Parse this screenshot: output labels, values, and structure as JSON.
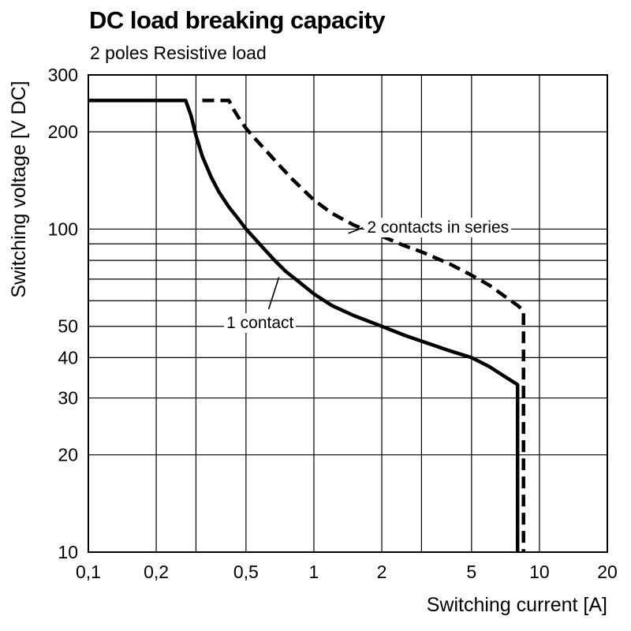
{
  "chart_data": {
    "type": "line",
    "title": "DC load breaking capacity",
    "subtitle": "2 poles Resistive load",
    "xlabel": "Switching current [A]",
    "ylabel": "Switching voltage [V DC]",
    "x_scale": "log",
    "y_scale": "log",
    "xlim": [
      0.1,
      20
    ],
    "ylim": [
      10,
      300
    ],
    "grid": true,
    "line_color": "#000000",
    "x_ticks": [
      {
        "v": 0.1,
        "label": "0,1"
      },
      {
        "v": 0.2,
        "label": "0,2"
      },
      {
        "v": 0.5,
        "label": "0,5"
      },
      {
        "v": 1,
        "label": "1"
      },
      {
        "v": 2,
        "label": "2"
      },
      {
        "v": 5,
        "label": "5"
      },
      {
        "v": 10,
        "label": "10"
      },
      {
        "v": 20,
        "label": "20"
      }
    ],
    "y_ticks": [
      {
        "v": 10,
        "label": "10"
      },
      {
        "v": 20,
        "label": "20"
      },
      {
        "v": 30,
        "label": "30"
      },
      {
        "v": 40,
        "label": "40"
      },
      {
        "v": 50,
        "label": "50"
      },
      {
        "v": 100,
        "label": "100"
      },
      {
        "v": 200,
        "label": "200"
      },
      {
        "v": 300,
        "label": "300"
      }
    ],
    "x_grid": [
      0.1,
      0.2,
      0.3,
      0.5,
      1,
      2,
      3,
      5,
      10,
      20
    ],
    "y_grid": [
      10,
      20,
      30,
      40,
      50,
      60,
      70,
      80,
      90,
      100,
      200,
      300
    ],
    "series": [
      {
        "name": "1 contact",
        "style": "solid",
        "points": [
          [
            0.1,
            250
          ],
          [
            0.27,
            250
          ],
          [
            0.285,
            225
          ],
          [
            0.3,
            195
          ],
          [
            0.32,
            168
          ],
          [
            0.35,
            145
          ],
          [
            0.38,
            130
          ],
          [
            0.42,
            117
          ],
          [
            0.46,
            108
          ],
          [
            0.5,
            100
          ],
          [
            0.55,
            93
          ],
          [
            0.6,
            87
          ],
          [
            0.67,
            80
          ],
          [
            0.75,
            74
          ],
          [
            0.85,
            69
          ],
          [
            1,
            63
          ],
          [
            1.2,
            58
          ],
          [
            1.5,
            54
          ],
          [
            2,
            50
          ],
          [
            2.5,
            47
          ],
          [
            3,
            45
          ],
          [
            4,
            42
          ],
          [
            5,
            40
          ],
          [
            6,
            37.5
          ],
          [
            7,
            35
          ],
          [
            8,
            33
          ],
          [
            8,
            10
          ]
        ]
      },
      {
        "name": "2 contacts in series",
        "style": "dashed",
        "points": [
          [
            0.32,
            250
          ],
          [
            0.42,
            250
          ],
          [
            0.44,
            235
          ],
          [
            0.47,
            218
          ],
          [
            0.5,
            205
          ],
          [
            0.55,
            190
          ],
          [
            0.6,
            178
          ],
          [
            0.7,
            158
          ],
          [
            0.8,
            143
          ],
          [
            0.9,
            132
          ],
          [
            1,
            123
          ],
          [
            1.2,
            112
          ],
          [
            1.5,
            103
          ],
          [
            2,
            95
          ],
          [
            2.5,
            89
          ],
          [
            3,
            85
          ],
          [
            4,
            78
          ],
          [
            5,
            72
          ],
          [
            6,
            67
          ],
          [
            7,
            62
          ],
          [
            8,
            58
          ],
          [
            8.5,
            56
          ],
          [
            8.5,
            10
          ]
        ]
      }
    ],
    "annotations": [
      {
        "text": "1 contact",
        "x": 0.4,
        "y": 51,
        "leader": {
          "x1": 0.63,
          "y1": 56.5,
          "x2": 0.7,
          "y2": 71
        }
      },
      {
        "text": "2 contacts in series",
        "x": 1.68,
        "y": 101,
        "leader": {
          "x1": 1.42,
          "y1": 97,
          "x2": 1.65,
          "y2": 101
        }
      }
    ]
  }
}
